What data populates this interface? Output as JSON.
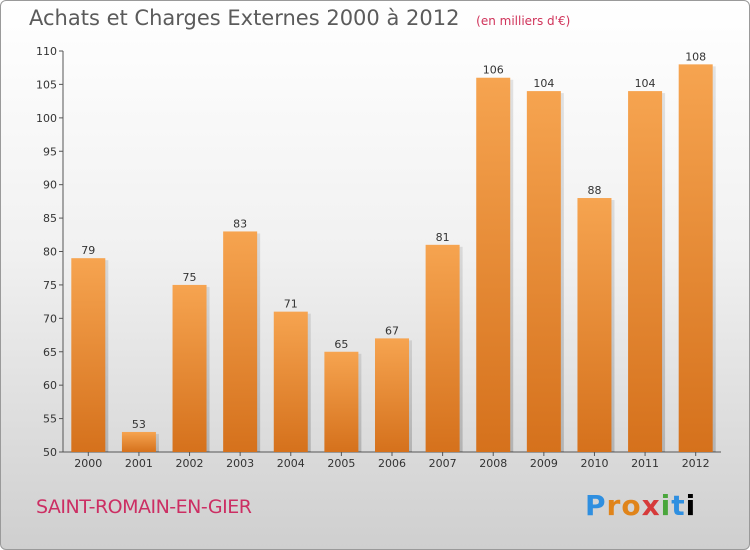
{
  "header": {
    "title": "Achats et Charges Externes 2000 à 2012",
    "unit": "(en milliers d'€)"
  },
  "footer": {
    "commune": "SAINT-ROMAIN-EN-GIER",
    "brand": "Proxiti",
    "brand_letters": [
      "P",
      "r",
      "o",
      "x",
      "i",
      "t",
      "i"
    ]
  },
  "colors": {
    "bar_top": "#f6a450",
    "bar_bottom": "#d5711c",
    "title": "#5b5b5b",
    "commune": "#cc2e63"
  },
  "chart_data": {
    "type": "bar",
    "categories": [
      "2000",
      "2001",
      "2002",
      "2003",
      "2004",
      "2005",
      "2006",
      "2007",
      "2008",
      "2009",
      "2010",
      "2011",
      "2012"
    ],
    "values": [
      79,
      53,
      75,
      83,
      71,
      65,
      67,
      81,
      106,
      104,
      88,
      104,
      108
    ],
    "ylim": [
      50,
      110
    ],
    "yticks": [
      50,
      55,
      60,
      65,
      70,
      75,
      80,
      85,
      90,
      95,
      100,
      105,
      110
    ],
    "grid": false,
    "data_labels": true
  }
}
